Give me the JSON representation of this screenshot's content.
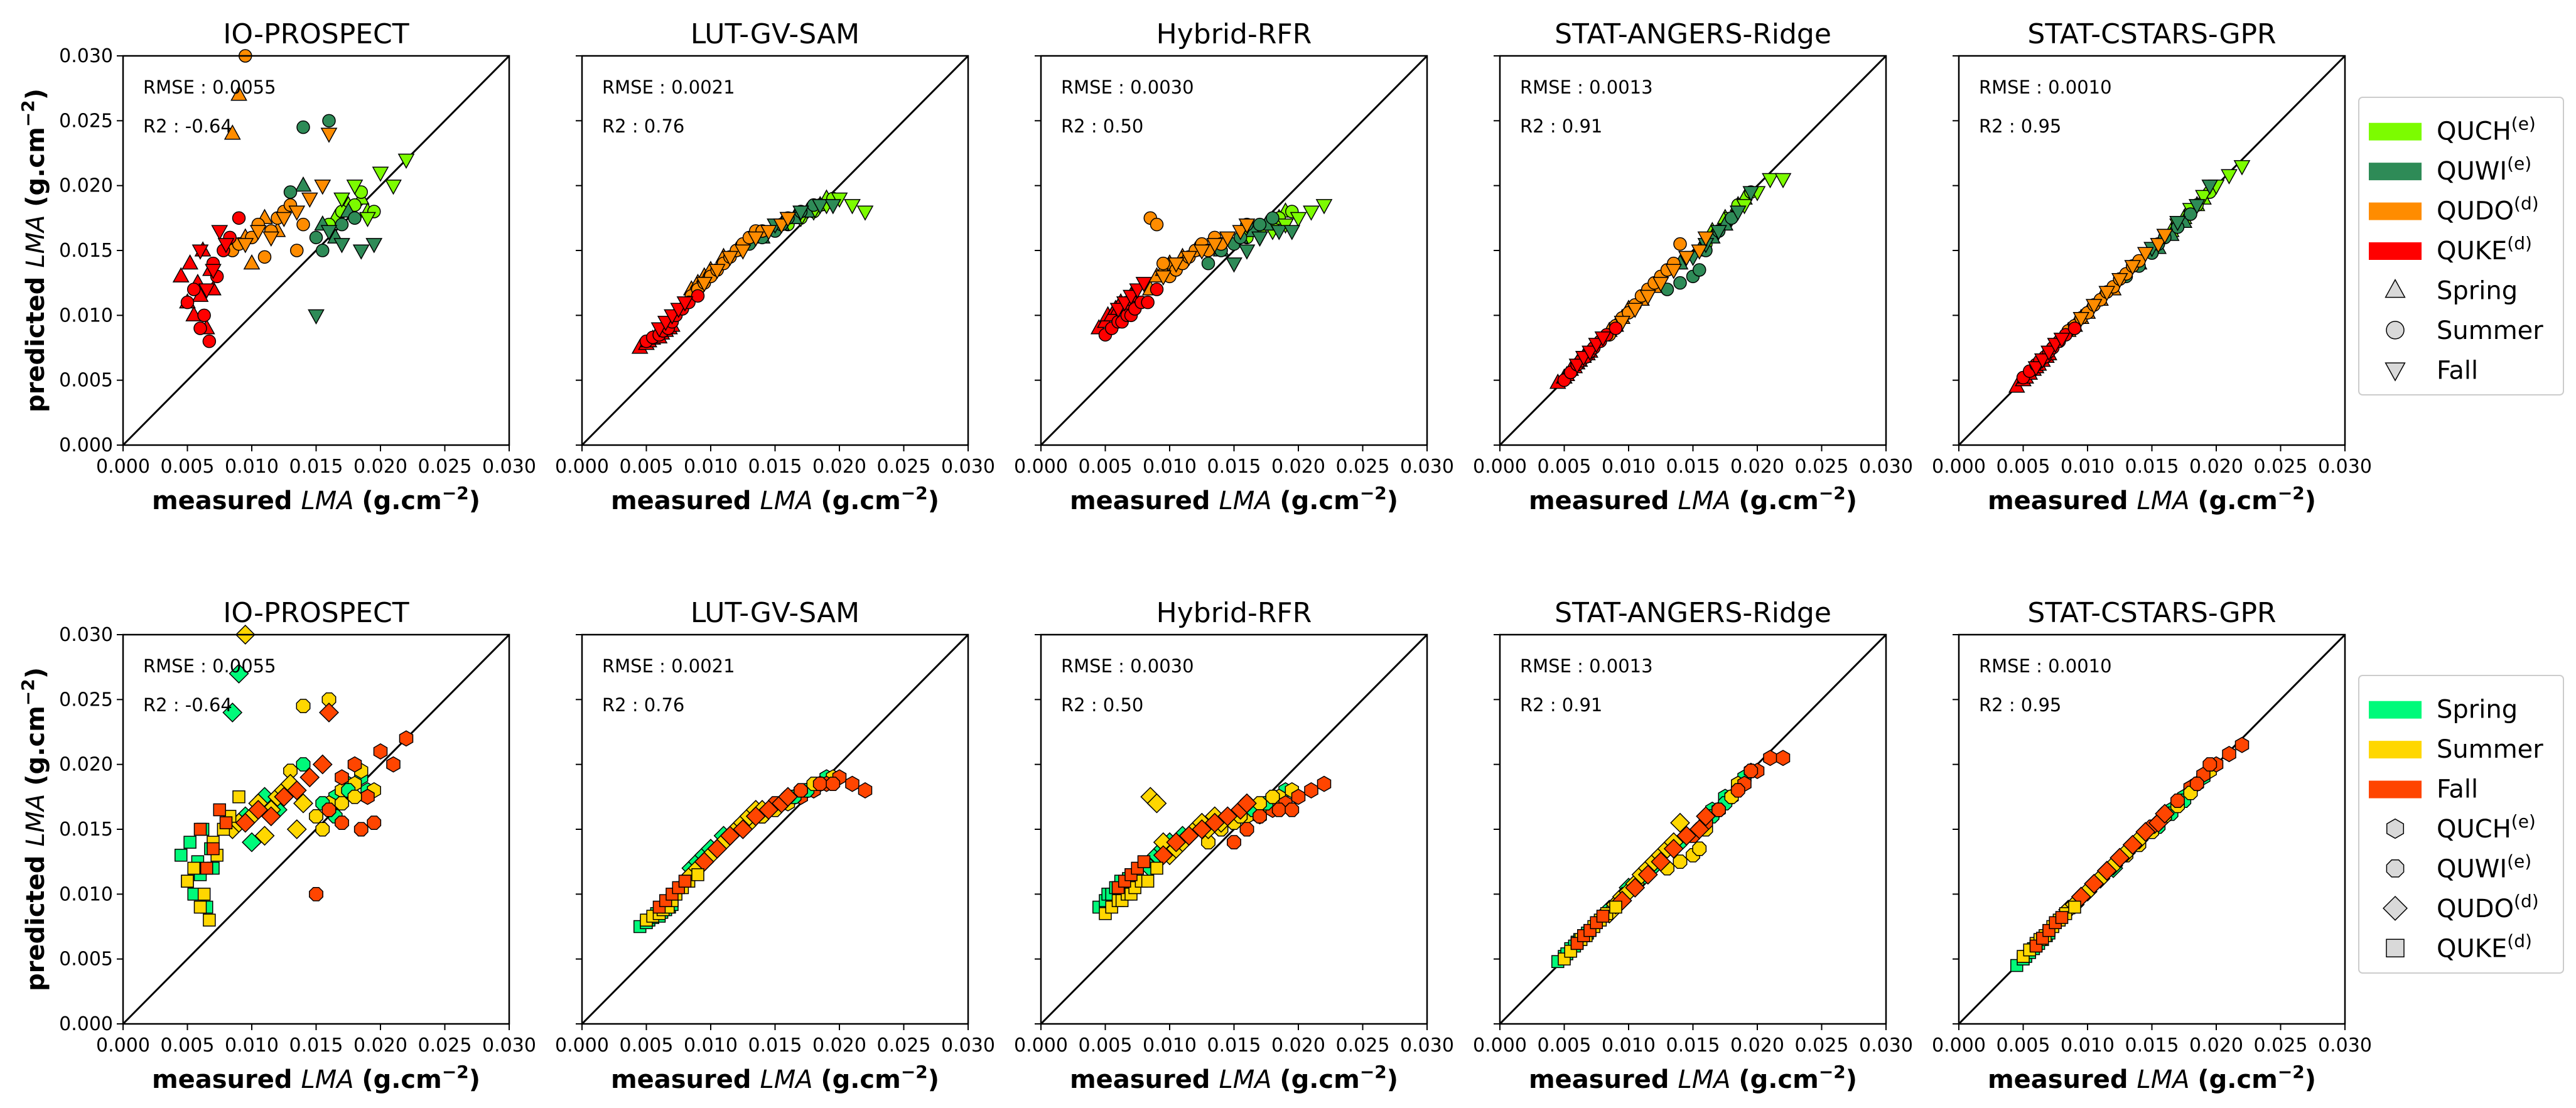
{
  "chart_data": [
    {
      "row": "top",
      "type": "scatter",
      "color_by": "species",
      "marker_by": "season",
      "xlabel": {
        "bold": "measured",
        "italic": "LMA",
        "unit": "(g.cm",
        "sup": "−2",
        "close": ")"
      },
      "ylabel": {
        "bold": "predicted",
        "italic": "LMA",
        "unit": "(g.cm",
        "sup": "−2",
        "close": ")"
      },
      "xlim": [
        0,
        0.03
      ],
      "ylim": [
        0,
        0.03
      ],
      "ticks": [
        "0.000",
        "0.005",
        "0.010",
        "0.015",
        "0.020",
        "0.025",
        "0.030"
      ],
      "legend": {
        "position": "right",
        "patches": [
          {
            "base": "QUCH",
            "sup": "(e)",
            "color": "#7cfc00"
          },
          {
            "base": "QUWI",
            "sup": "(e)",
            "color": "#2e8b57"
          },
          {
            "base": "QUDO",
            "sup": "(d)",
            "color": "#ff8c00"
          },
          {
            "base": "QUKE",
            "sup": "(d)",
            "color": "#ff0000"
          }
        ],
        "markers": [
          {
            "label": "Spring",
            "shape": "triangle-up"
          },
          {
            "label": "Summer",
            "shape": "circle"
          },
          {
            "label": "Fall",
            "shape": "triangle-down"
          }
        ]
      },
      "panels": [
        {
          "title": "IO-PROSPECT",
          "rmse": "RMSE : 0.0055",
          "r2": "R2 : -0.64"
        },
        {
          "title": "LUT-GV-SAM",
          "rmse": "RMSE : 0.0021",
          "r2": "R2 : 0.76"
        },
        {
          "title": "Hybrid-RFR",
          "rmse": "RMSE : 0.0030",
          "r2": "R2 : 0.50"
        },
        {
          "title": "STAT-ANGERS-Ridge",
          "rmse": "RMSE : 0.0013",
          "r2": "R2 : 0.91"
        },
        {
          "title": "STAT-CSTARS-GPR",
          "rmse": "RMSE : 0.0010",
          "r2": "R2 : 0.95"
        }
      ]
    },
    {
      "row": "bottom",
      "type": "scatter",
      "color_by": "season",
      "marker_by": "species",
      "xlabel": {
        "bold": "measured",
        "italic": "LMA",
        "unit": "(g.cm",
        "sup": "−2",
        "close": ")"
      },
      "ylabel": {
        "bold": "predicted",
        "italic": "LMA",
        "unit": "(g.cm",
        "sup": "−2",
        "close": ")"
      },
      "xlim": [
        0,
        0.03
      ],
      "ylim": [
        0,
        0.03
      ],
      "ticks": [
        "0.000",
        "0.005",
        "0.010",
        "0.015",
        "0.020",
        "0.025",
        "0.030"
      ],
      "legend": {
        "position": "right",
        "patches": [
          {
            "base": "Spring",
            "sup": "",
            "color": "#00fa7a"
          },
          {
            "base": "Summer",
            "sup": "",
            "color": "#ffd700"
          },
          {
            "base": "Fall",
            "sup": "",
            "color": "#ff4500"
          }
        ],
        "markers": [
          {
            "label": "QUCH",
            "sup": "(e)",
            "shape": "hexagon"
          },
          {
            "label": "QUWI",
            "sup": "(e)",
            "shape": "octagon"
          },
          {
            "label": "QUDO",
            "sup": "(d)",
            "shape": "diamond"
          },
          {
            "label": "QUKE",
            "sup": "(d)",
            "shape": "square"
          }
        ]
      },
      "panels": [
        {
          "title": "IO-PROSPECT",
          "rmse": "RMSE : 0.0055",
          "r2": "R2 : -0.64"
        },
        {
          "title": "LUT-GV-SAM",
          "rmse": "RMSE : 0.0021",
          "r2": "R2 : 0.76"
        },
        {
          "title": "Hybrid-RFR",
          "rmse": "RMSE : 0.0030",
          "r2": "R2 : 0.50"
        },
        {
          "title": "STAT-ANGERS-Ridge",
          "rmse": "RMSE : 0.0013",
          "r2": "R2 : 0.91"
        },
        {
          "title": "STAT-CSTARS-GPR",
          "rmse": "RMSE : 0.0010",
          "r2": "R2 : 0.95"
        }
      ]
    }
  ],
  "groups": {
    "species": [
      "QUCH",
      "QUWI",
      "QUDO",
      "QUKE"
    ],
    "seasons": [
      "Spring",
      "Summer",
      "Fall"
    ],
    "species_colors": {
      "QUCH": "#7cfc00",
      "QUWI": "#2e8b57",
      "QUDO": "#ff8c00",
      "QUKE": "#ff0000"
    },
    "season_colors": {
      "Spring": "#00fa7a",
      "Summer": "#ffd700",
      "Fall": "#ff4500"
    },
    "species_shapes": {
      "QUCH": "hexagon",
      "QUWI": "octagon",
      "QUDO": "diamond",
      "QUKE": "square"
    },
    "season_shapes": {
      "Spring": "triangle-up",
      "Summer": "circle",
      "Fall": "triangle-down"
    }
  },
  "points": {
    "measured": {
      "QUKE": {
        "Spring": [
          0.0045,
          0.005,
          0.0052,
          0.0055,
          0.0058,
          0.006,
          0.0062,
          0.0065,
          0.0068,
          0.007
        ],
        "Summer": [
          0.005,
          0.0055,
          0.006,
          0.0063,
          0.0067,
          0.007,
          0.0073,
          0.0078,
          0.0083,
          0.009
        ],
        "Fall": [
          0.006,
          0.0065,
          0.007,
          0.0075,
          0.008
        ]
      },
      "QUDO": {
        "Spring": [
          0.0085,
          0.009,
          0.0095,
          0.01,
          0.011,
          0.012
        ],
        "Summer": [
          0.0085,
          0.009,
          0.0095,
          0.01,
          0.0105,
          0.011,
          0.0115,
          0.012,
          0.0125,
          0.013,
          0.0135,
          0.014
        ],
        "Fall": [
          0.0095,
          0.0105,
          0.0115,
          0.0125,
          0.0135,
          0.0145,
          0.0155,
          0.016
        ]
      },
      "QUWI": {
        "Spring": [
          0.014,
          0.0155,
          0.0165,
          0.0175
        ],
        "Summer": [
          0.013,
          0.014,
          0.015,
          0.0155,
          0.016,
          0.017,
          0.018
        ],
        "Fall": [
          0.015,
          0.016,
          0.017,
          0.0185,
          0.0195
        ]
      },
      "QUCH": {
        "Spring": [
          0.0165,
          0.0175,
          0.0185,
          0.019
        ],
        "Summer": [
          0.016,
          0.017,
          0.018,
          0.0185,
          0.0195
        ],
        "Fall": [
          0.017,
          0.018,
          0.019,
          0.02,
          0.021,
          0.022
        ]
      }
    },
    "predicted": [
      {
        "QUKE": {
          "Spring": [
            0.013,
            0.011,
            0.014,
            0.01,
            0.0125,
            0.0115,
            0.015,
            0.009,
            0.0135,
            0.012
          ],
          "Summer": [
            0.011,
            0.012,
            0.009,
            0.01,
            0.008,
            0.014,
            0.013,
            0.015,
            0.016,
            0.0175
          ],
          "Fall": [
            0.015,
            0.012,
            0.0135,
            0.0165,
            0.0155
          ]
        },
        "QUDO": {
          "Spring": [
            0.024,
            0.027,
            0.016,
            0.014,
            0.0175,
            0.0165
          ],
          "Summer": [
            0.015,
            0.0155,
            0.03,
            0.016,
            0.017,
            0.0145,
            0.0165,
            0.0175,
            0.018,
            0.0185,
            0.015,
            0.017
          ],
          "Fall": [
            0.0155,
            0.0165,
            0.016,
            0.0175,
            0.018,
            0.019,
            0.02,
            0.024
          ]
        },
        "QUWI": {
          "Spring": [
            0.02,
            0.017,
            0.016,
            0.018
          ],
          "Summer": [
            0.0195,
            0.0245,
            0.016,
            0.015,
            0.025,
            0.017,
            0.0175
          ],
          "Fall": [
            0.01,
            0.0165,
            0.0155,
            0.015,
            0.0155
          ]
        },
        "QUCH": {
          "Spring": [
            0.0175,
            0.0185,
            0.019,
            0.018
          ],
          "Summer": [
            0.017,
            0.018,
            0.0185,
            0.0195,
            0.018
          ],
          "Fall": [
            0.019,
            0.02,
            0.0175,
            0.021,
            0.02,
            0.022
          ]
        }
      },
      {
        "QUKE": {
          "Spring": [
            0.0075,
            0.0078,
            0.008,
            0.0082,
            0.0085,
            0.0083,
            0.0086,
            0.0088,
            0.009,
            0.0092
          ],
          "Summer": [
            0.008,
            0.0083,
            0.0085,
            0.0088,
            0.009,
            0.0095,
            0.01,
            0.0105,
            0.011,
            0.0115
          ],
          "Fall": [
            0.009,
            0.0095,
            0.01,
            0.0105,
            0.011
          ]
        },
        "QUDO": {
          "Spring": [
            0.012,
            0.0125,
            0.013,
            0.0135,
            0.0145,
            0.015
          ],
          "Summer": [
            0.0115,
            0.012,
            0.0125,
            0.013,
            0.0135,
            0.014,
            0.0145,
            0.015,
            0.0155,
            0.016,
            0.0165,
            0.0165
          ],
          "Fall": [
            0.0125,
            0.0135,
            0.0145,
            0.015,
            0.016,
            0.0165,
            0.017,
            0.0175
          ]
        },
        "QUWI": {
          "Spring": [
            0.016,
            0.017,
            0.0175,
            0.018
          ],
          "Summer": [
            0.0155,
            0.016,
            0.0165,
            0.017,
            0.0175,
            0.018,
            0.0185
          ],
          "Fall": [
            0.017,
            0.0175,
            0.018,
            0.0185,
            0.0185
          ]
        },
        "QUCH": {
          "Spring": [
            0.0175,
            0.018,
            0.0185,
            0.019
          ],
          "Summer": [
            0.017,
            0.0175,
            0.018,
            0.0185,
            0.019
          ],
          "Fall": [
            0.0175,
            0.018,
            0.0185,
            0.019,
            0.0185,
            0.018
          ]
        }
      },
      {
        "QUKE": {
          "Spring": [
            0.009,
            0.0095,
            0.01,
            0.01,
            0.0105,
            0.0105,
            0.011,
            0.0108,
            0.0112,
            0.0115
          ],
          "Summer": [
            0.0085,
            0.009,
            0.0095,
            0.0095,
            0.01,
            0.01,
            0.0105,
            0.011,
            0.011,
            0.012
          ],
          "Fall": [
            0.0105,
            0.011,
            0.0115,
            0.012,
            0.0125
          ]
        },
        "QUDO": {
          "Spring": [
            0.012,
            0.013,
            0.0135,
            0.014,
            0.0145,
            0.015
          ],
          "Summer": [
            0.0175,
            0.017,
            0.014,
            0.013,
            0.0135,
            0.014,
            0.0145,
            0.015,
            0.0155,
            0.015,
            0.016,
            0.0155
          ],
          "Fall": [
            0.013,
            0.014,
            0.0145,
            0.015,
            0.0155,
            0.016,
            0.0165,
            0.017
          ]
        },
        "QUWI": {
          "Spring": [
            0.015,
            0.016,
            0.0165,
            0.017
          ],
          "Summer": [
            0.014,
            0.015,
            0.0155,
            0.016,
            0.017,
            0.017,
            0.0175
          ],
          "Fall": [
            0.014,
            0.015,
            0.016,
            0.0165,
            0.0165
          ]
        },
        "QUCH": {
          "Spring": [
            0.0165,
            0.017,
            0.0175,
            0.018
          ],
          "Summer": [
            0.016,
            0.0165,
            0.017,
            0.0175,
            0.018
          ],
          "Fall": [
            0.016,
            0.0165,
            0.017,
            0.0175,
            0.018,
            0.0185
          ]
        }
      },
      {
        "QUKE": {
          "Spring": [
            0.0048,
            0.0052,
            0.0054,
            0.0058,
            0.006,
            0.0063,
            0.0065,
            0.0068,
            0.007,
            0.0072
          ],
          "Summer": [
            0.005,
            0.0056,
            0.0062,
            0.0065,
            0.0068,
            0.0072,
            0.0075,
            0.008,
            0.0085,
            0.009
          ],
          "Fall": [
            0.0062,
            0.0068,
            0.0072,
            0.0078,
            0.0083
          ]
        },
        "QUDO": {
          "Spring": [
            0.0088,
            0.0092,
            0.0098,
            0.0105,
            0.0112,
            0.0122
          ],
          "Summer": [
            0.0085,
            0.0092,
            0.0098,
            0.0102,
            0.0108,
            0.0115,
            0.012,
            0.0125,
            0.013,
            0.0135,
            0.014,
            0.0155
          ],
          "Fall": [
            0.0095,
            0.0105,
            0.0115,
            0.0125,
            0.0135,
            0.0145,
            0.015,
            0.016
          ]
        },
        "QUWI": {
          "Spring": [
            0.014,
            0.015,
            0.016,
            0.017
          ],
          "Summer": [
            0.012,
            0.0125,
            0.013,
            0.0135,
            0.015,
            0.0165,
            0.0175
          ],
          "Fall": [
            0.0145,
            0.0155,
            0.0165,
            0.018,
            0.0195
          ]
        },
        "QUCH": {
          "Spring": [
            0.0165,
            0.0175,
            0.0185,
            0.019
          ],
          "Summer": [
            0.0155,
            0.0165,
            0.0175,
            0.0185,
            0.0195
          ],
          "Fall": [
            0.0165,
            0.0175,
            0.0185,
            0.0195,
            0.0205,
            0.0205
          ]
        }
      },
      {
        "QUKE": {
          "Spring": [
            0.0045,
            0.005,
            0.0052,
            0.0055,
            0.0058,
            0.006,
            0.0062,
            0.0065,
            0.0068,
            0.007
          ],
          "Summer": [
            0.0052,
            0.0057,
            0.0062,
            0.0065,
            0.0068,
            0.0072,
            0.0075,
            0.008,
            0.0085,
            0.009
          ],
          "Fall": [
            0.006,
            0.0066,
            0.0072,
            0.0078,
            0.0082
          ]
        },
        "QUDO": {
          "Spring": [
            0.0088,
            0.0092,
            0.0098,
            0.0102,
            0.0112,
            0.012
          ],
          "Summer": [
            0.0088,
            0.0092,
            0.0098,
            0.0102,
            0.0108,
            0.0112,
            0.0118,
            0.0122,
            0.0128,
            0.0132,
            0.0138,
            0.0142
          ],
          "Fall": [
            0.0098,
            0.0108,
            0.0118,
            0.0128,
            0.0138,
            0.0148,
            0.0155,
            0.0162
          ]
        },
        "QUWI": {
          "Spring": [
            0.014,
            0.0152,
            0.0162,
            0.0172
          ],
          "Summer": [
            0.013,
            0.0138,
            0.0148,
            0.0155,
            0.016,
            0.0168,
            0.0178
          ],
          "Fall": [
            0.0152,
            0.0162,
            0.0172,
            0.0185,
            0.02
          ]
        },
        "QUCH": {
          "Spring": [
            0.0165,
            0.0175,
            0.0185,
            0.019
          ],
          "Summer": [
            0.016,
            0.017,
            0.018,
            0.0185,
            0.0195
          ],
          "Fall": [
            0.017,
            0.0182,
            0.0192,
            0.02,
            0.0208,
            0.0215
          ]
        }
      }
    ]
  }
}
